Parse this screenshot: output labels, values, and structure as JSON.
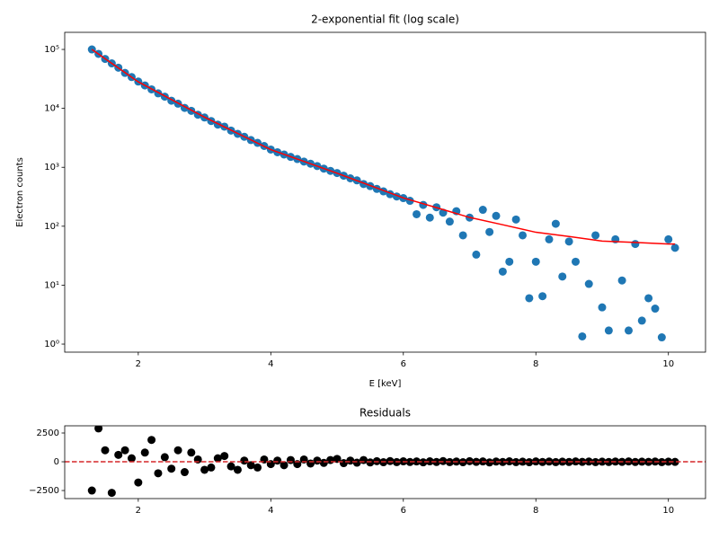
{
  "chart_data": [
    {
      "type": "scatter",
      "title": "2-exponential fit (log scale)",
      "x_label": "E [keV]",
      "y_label": "Electron counts",
      "xlim": [
        0.89,
        10.56
      ],
      "xticks": [
        2,
        4,
        6,
        8,
        10
      ],
      "ylim": [
        0.73,
        195000
      ],
      "y_scale": "log",
      "yticks": [
        {
          "value": 1,
          "label": "10⁰"
        },
        {
          "value": 10,
          "label": "10¹"
        },
        {
          "value": 100,
          "label": "10²"
        },
        {
          "value": 1000,
          "label": "10³"
        },
        {
          "value": 10000,
          "label": "10⁴"
        },
        {
          "value": 100000,
          "label": "10⁵"
        }
      ],
      "series": [
        {
          "type": "scatter",
          "color": "#1f77b4",
          "x": [
            1.3,
            1.4,
            1.5,
            1.6,
            1.7,
            1.8,
            1.9,
            2.0,
            2.1,
            2.2,
            2.3,
            2.4,
            2.5,
            2.6,
            2.7,
            2.8,
            2.9,
            3.0,
            3.1,
            3.2,
            3.3,
            3.4,
            3.5,
            3.6,
            3.7,
            3.8,
            3.9,
            4.0,
            4.1,
            4.2,
            4.3,
            4.4,
            4.5,
            4.6,
            4.7,
            4.8,
            4.9,
            5.0,
            5.1,
            5.2,
            5.3,
            5.4,
            5.5,
            5.6,
            5.7,
            5.8,
            5.9,
            6.0,
            6.1,
            6.2,
            6.3,
            6.4,
            6.5,
            6.6,
            6.7,
            6.8,
            6.9,
            7.0,
            7.1,
            7.2,
            7.3,
            7.4,
            7.5,
            7.6,
            7.7,
            7.8,
            7.9,
            8.0,
            8.1,
            8.2,
            8.3,
            8.4,
            8.5,
            8.6,
            8.7,
            8.8,
            8.9,
            9.0,
            9.1,
            9.2,
            9.3,
            9.4,
            9.5,
            9.6,
            9.7,
            9.8,
            9.9,
            10.0,
            10.1
          ],
          "values": [
            100000,
            84000,
            69000,
            58000,
            49000,
            40000,
            34000,
            28500,
            24500,
            21000,
            18000,
            15800,
            13500,
            12000,
            10200,
            9100,
            7800,
            7000,
            6100,
            5300,
            4900,
            4200,
            3700,
            3300,
            2900,
            2600,
            2300,
            2000,
            1800,
            1650,
            1500,
            1380,
            1250,
            1150,
            1050,
            950,
            870,
            800,
            720,
            650,
            600,
            520,
            480,
            430,
            390,
            350,
            320,
            300,
            270,
            160,
            230,
            140,
            210,
            170,
            120,
            180,
            70,
            140,
            33,
            190,
            80,
            150,
            17,
            25,
            130,
            70,
            6,
            25,
            6.5,
            60,
            110,
            14,
            55,
            25,
            1.35,
            10.5,
            70,
            4.2,
            1.7,
            60,
            12,
            1.7,
            50,
            2.5,
            6,
            4,
            1.3,
            60,
            43
          ]
        },
        {
          "type": "line",
          "color": "#ff0000",
          "x": [
            1.3,
            1.5,
            2,
            2.5,
            3,
            3.5,
            4,
            4.5,
            5,
            5.5,
            6,
            6.5,
            7,
            7.5,
            8,
            8.5,
            9,
            9.5,
            10,
            10.1
          ],
          "values": [
            100000,
            69600,
            28200,
            14100,
            7080,
            3760,
            1995,
            1260,
            794,
            490,
            302,
            207,
            141,
            106,
            79,
            67,
            56,
            53,
            50,
            50
          ]
        }
      ]
    },
    {
      "type": "scatter",
      "title": "Residuals",
      "xlim": [
        0.89,
        10.56
      ],
      "xticks": [
        2,
        4,
        6,
        8,
        10
      ],
      "ylim": [
        -3200,
        3125
      ],
      "yticks": [
        {
          "value": -2500,
          "label": "−2500"
        },
        0,
        2500
      ],
      "reference_line": {
        "y": 0,
        "color": "#d62728",
        "dashed": true
      },
      "series": [
        {
          "type": "scatter",
          "color": "#000000",
          "x": [
            1.3,
            1.4,
            1.5,
            1.6,
            1.7,
            1.8,
            1.9,
            2.0,
            2.1,
            2.2,
            2.3,
            2.4,
            2.5,
            2.6,
            2.7,
            2.8,
            2.9,
            3.0,
            3.1,
            3.2,
            3.3,
            3.4,
            3.5,
            3.6,
            3.7,
            3.8,
            3.9,
            4.0,
            4.1,
            4.2,
            4.3,
            4.4,
            4.5,
            4.6,
            4.7,
            4.8,
            4.9,
            5.0,
            5.1,
            5.2,
            5.3,
            5.4,
            5.5,
            5.6,
            5.7,
            5.8,
            5.9,
            6.0,
            6.1,
            6.2,
            6.3,
            6.4,
            6.5,
            6.6,
            6.7,
            6.8,
            6.9,
            7.0,
            7.1,
            7.2,
            7.3,
            7.4,
            7.5,
            7.6,
            7.7,
            7.8,
            7.9,
            8.0,
            8.1,
            8.2,
            8.3,
            8.4,
            8.5,
            8.6,
            8.7,
            8.8,
            8.9,
            9.0,
            9.1,
            9.2,
            9.3,
            9.4,
            9.5,
            9.6,
            9.7,
            9.8,
            9.9,
            10.0,
            10.1
          ],
          "values": [
            -2500,
            2900,
            1000,
            -2700,
            600,
            1000,
            300,
            -1800,
            800,
            1900,
            -1000,
            400,
            -600,
            1000,
            -900,
            800,
            200,
            -700,
            -500,
            300,
            500,
            -400,
            -700,
            100,
            -300,
            -500,
            200,
            -200,
            100,
            -300,
            150,
            -200,
            200,
            -150,
            100,
            -100,
            150,
            250,
            -120,
            100,
            -80,
            150,
            -60,
            50,
            -40,
            60,
            -30,
            40,
            -20,
            30,
            -50,
            40,
            -20,
            60,
            -30,
            20,
            -40,
            50,
            -10,
            30,
            -60,
            20,
            -20,
            40,
            -30,
            10,
            -40,
            30,
            -20,
            20,
            -30,
            10,
            -20,
            30,
            -10,
            20,
            -30,
            10,
            -20,
            20,
            -10,
            30,
            -20,
            10,
            -10,
            20,
            -30,
            10,
            -10
          ]
        }
      ]
    }
  ]
}
